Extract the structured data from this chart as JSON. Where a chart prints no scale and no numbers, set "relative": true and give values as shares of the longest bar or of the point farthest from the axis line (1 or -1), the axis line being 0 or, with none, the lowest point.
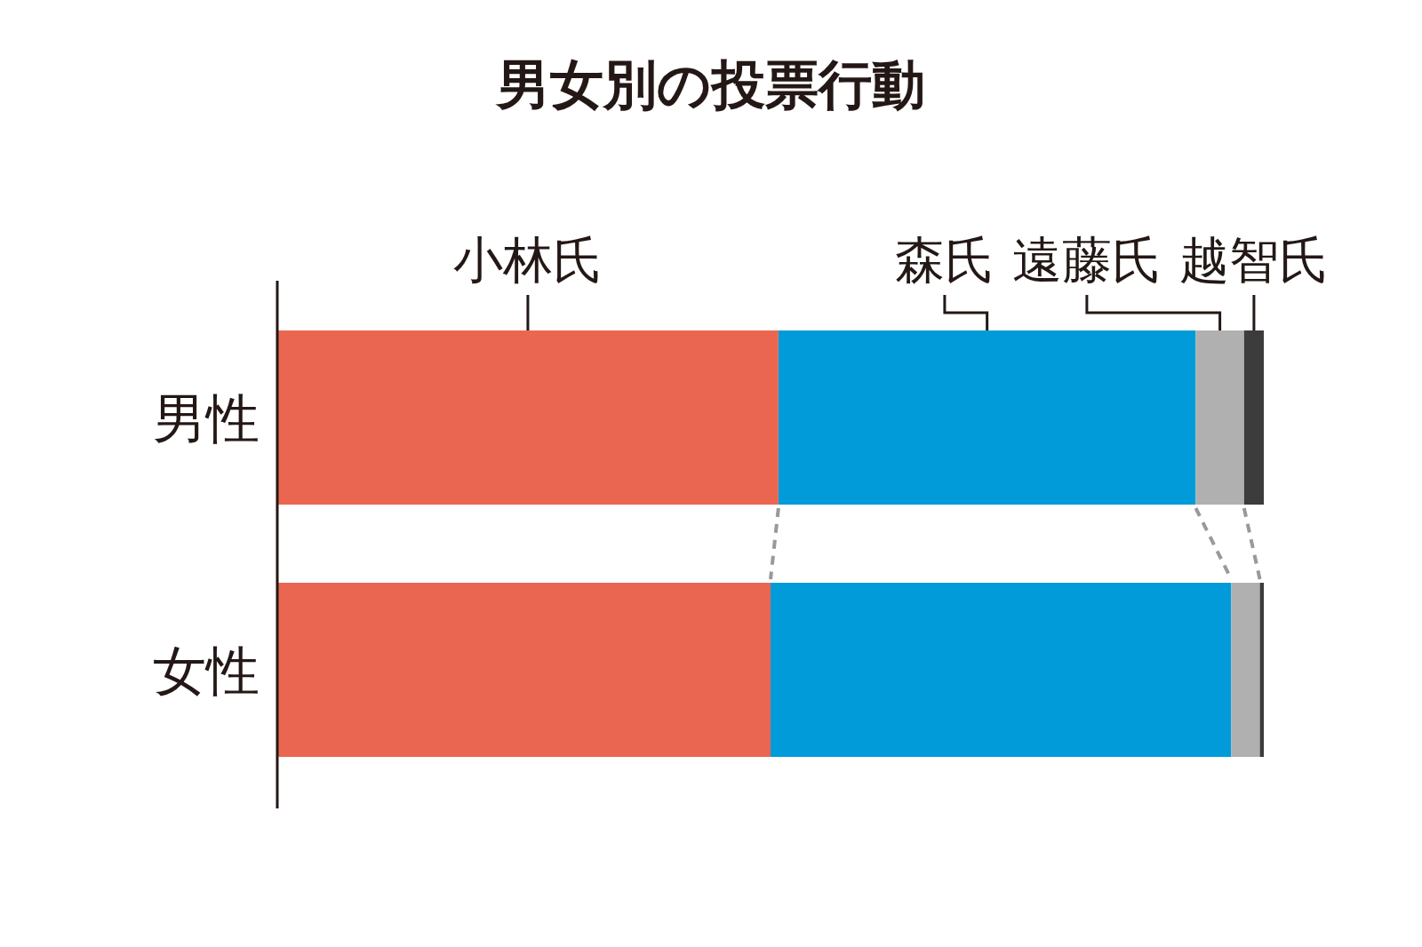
{
  "chart_data": {
    "type": "bar",
    "title": "男女別の投票行動",
    "orientation": "horizontal",
    "stacked": true,
    "relative": true,
    "categories": [
      "男性",
      "女性"
    ],
    "series": [
      {
        "name": "小林氏",
        "color": "#eb6650",
        "values": [
          0.508,
          0.5
        ]
      },
      {
        "name": "森氏",
        "color": "#009bd8",
        "values": [
          0.423,
          0.467
        ]
      },
      {
        "name": "遠藤氏",
        "color": "#b0b0b0",
        "values": [
          0.049,
          0.029
        ]
      },
      {
        "name": "越智氏",
        "color": "#3c3c3c",
        "values": [
          0.02,
          0.004
        ]
      }
    ]
  }
}
